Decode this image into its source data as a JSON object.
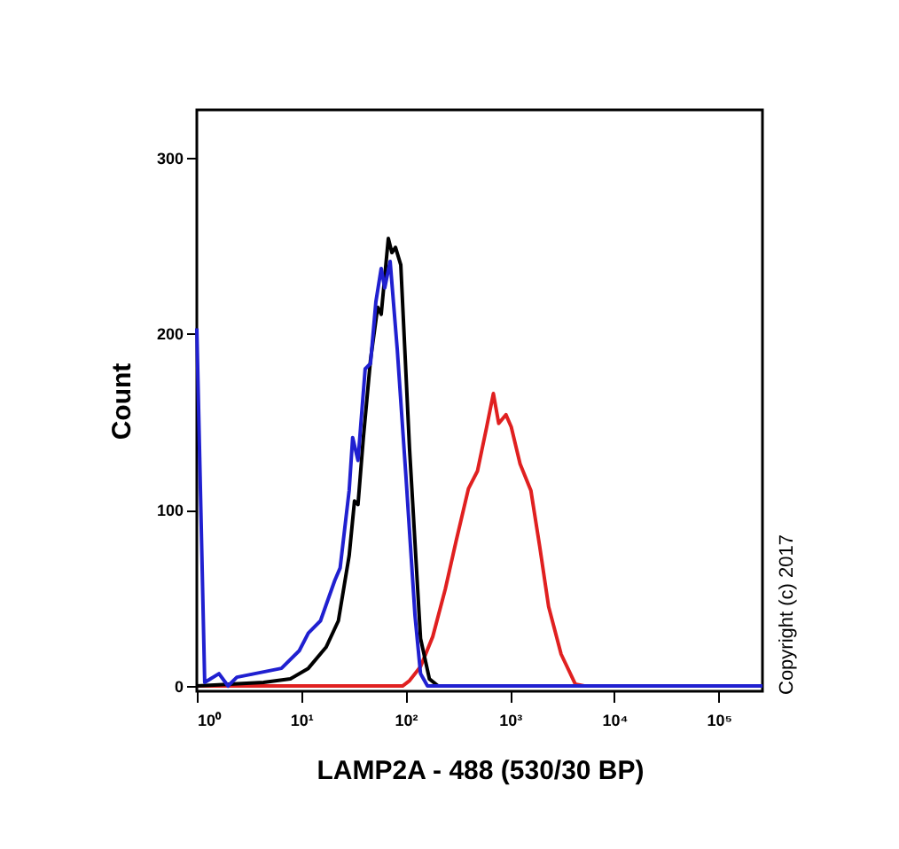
{
  "chart_data": {
    "type": "line",
    "xlabel": "LAMP2A - 488 (530/30 BP)",
    "ylabel": "Count",
    "log": "x",
    "xlim": [
      1,
      262144
    ],
    "ylim": [
      -3,
      327
    ],
    "xticks": [
      {
        "value": 1,
        "label": "10⁰"
      },
      {
        "value": 10,
        "label": "10¹"
      },
      {
        "value": 100,
        "label": "10²"
      },
      {
        "value": 1000,
        "label": "10³"
      },
      {
        "value": 10000,
        "label": "10⁴"
      },
      {
        "value": 100000,
        "label": "10⁵"
      }
    ],
    "yticks": [
      0,
      100,
      200,
      300
    ],
    "annotations": [
      "Copyright (c) 2017"
    ],
    "series": [
      {
        "color": "#e02020",
        "x": [
          1,
          93.5,
          109,
          139,
          182,
          240,
          304,
          400,
          488,
          593,
          693,
          780,
          914,
          1028,
          1250,
          1585,
          1928,
          2344,
          3090,
          4230,
          5150,
          262144
        ],
        "values": [
          0,
          0,
          3,
          11,
          28,
          55,
          82,
          112,
          122,
          146,
          166,
          149,
          154,
          147,
          126,
          111,
          79,
          45,
          18,
          1,
          0,
          0
        ]
      },
      {
        "color": "#000000",
        "x": [
          1,
          4.36,
          7.87,
          11.7,
          17.3,
          22.7,
          28.8,
          32.4,
          35.0,
          39.4,
          46.1,
          54.0,
          58.4,
          68.3,
          73.9,
          80.0,
          89.9,
          109,
          139,
          169,
          205,
          262144
        ],
        "values": [
          0,
          2,
          4,
          10,
          22,
          37,
          74,
          105,
          103,
          141,
          185,
          215,
          211,
          254,
          246,
          249,
          239,
          135,
          27,
          4,
          0,
          0
        ]
      },
      {
        "color": "#2020d0",
        "x": [
          1,
          1.19,
          1.63,
          1.99,
          2.42,
          3.59,
          6.47,
          9.58,
          11.7,
          15.3,
          21.0,
          23.6,
          28.8,
          31.1,
          35.0,
          41.0,
          46.1,
          51.9,
          58.4,
          63.1,
          71.1,
          83.2,
          101,
          123,
          139,
          162,
          262144
        ],
        "values": [
          203,
          2,
          7,
          0,
          5,
          7,
          10,
          20,
          30,
          37,
          60,
          67,
          111,
          141,
          128,
          180,
          183,
          218,
          237,
          226,
          241,
          191,
          118,
          40,
          7,
          0,
          0
        ]
      }
    ]
  }
}
